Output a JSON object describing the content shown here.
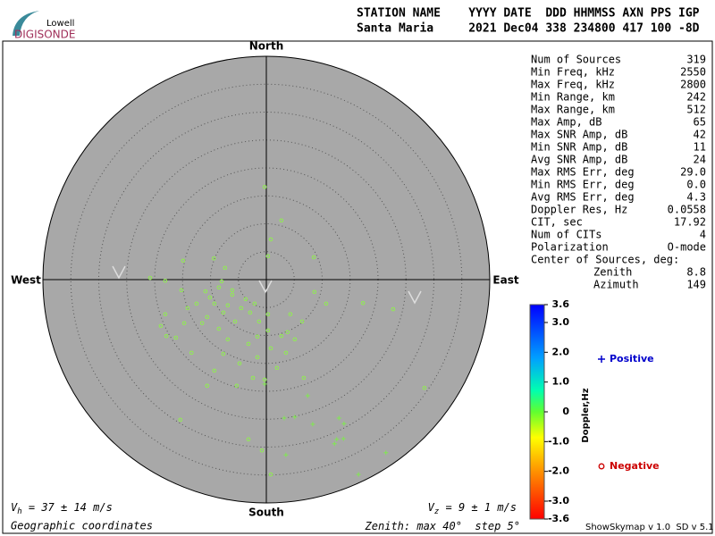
{
  "header": {
    "logo_top": "Lowell",
    "logo_bottom": "DIGISONDE",
    "columns": "STATION NAME    YYYY DATE  DDD HHMMSS AXN PPS IGP",
    "row": "Santa Maria     2021 Dec04 338 234800 417 100 -8D"
  },
  "stats": {
    "rows": [
      [
        "Num of Sources",
        "319"
      ],
      [
        "Min Freq, kHz",
        "2550"
      ],
      [
        "Max Freq, kHz",
        "2800"
      ],
      [
        "Min Range, km",
        "242"
      ],
      [
        "Max Range, km",
        "512"
      ],
      [
        "Max Amp, dB",
        "65"
      ],
      [
        "Max SNR Amp, dB",
        "42"
      ],
      [
        "Min SNR Amp, dB",
        "11"
      ],
      [
        "Avg SNR Amp, dB",
        "24"
      ],
      [
        "Max RMS Err, deg",
        "29.0"
      ],
      [
        "Min RMS Err, deg",
        "0.0"
      ],
      [
        "Avg RMS Err, deg",
        "4.3"
      ],
      [
        "Doppler Res, Hz",
        "0.0558"
      ],
      [
        "CIT, sec",
        "17.92"
      ],
      [
        "Num of CITs",
        "4"
      ],
      [
        "Polarization",
        "O-mode"
      ]
    ],
    "center_title": "Center of Sources, deg:",
    "center_rows": [
      [
        "Zenith",
        "8.8"
      ],
      [
        "Azimuth",
        "149"
      ]
    ]
  },
  "chart_data": {
    "type": "skymap",
    "directions": {
      "north": "North",
      "south": "South",
      "east": "East",
      "west": "West"
    },
    "zenith_label": "Zenith: max",
    "zenith_max": {
      "value": 40,
      "label": "40°"
    },
    "step_label": "step",
    "zenith_step": {
      "value": 5,
      "label": "5°"
    },
    "series": [
      {
        "name": "Positive",
        "marker": "plus",
        "color": "#80e850",
        "legend_color": "#0000cc",
        "east": [
          7.4,
          3.2,
          5.1,
          8.3,
          13.0,
          13.9,
          12.2,
          13.8,
          12.6,
          21.4,
          3.5,
          16.5,
          -0.3
        ],
        "north": [
          -20.8,
          -24.8,
          -24.6,
          -25.9,
          -24.8,
          -25.8,
          -29.4,
          -28.5,
          -28.6,
          -31.0,
          -31.4,
          -34.9,
          -18.7
        ]
      },
      {
        "name": "Negative",
        "marker": "circle",
        "color": "#90ee50",
        "legend_color": "#cc0000",
        "east": [
          -0.3,
          2.7,
          0.8,
          8.5,
          0.3,
          -9.4,
          -14.9,
          -7.4,
          -20.8,
          -18.1,
          -15.2,
          -10.9,
          -8.5,
          -6.1,
          -3.7,
          -9.3,
          -7.7,
          -10.6,
          -5.6,
          -8.5,
          -2.9,
          -1.3,
          0.3,
          4.3,
          8.6,
          17.3,
          22.7,
          -18.1,
          -18.9,
          -16.2,
          -13.4,
          -9.3,
          -10.6,
          -4.8,
          -2.4,
          -0.3,
          0.8,
          2.7,
          5.1,
          3.5,
          6.4,
          3.8,
          28.3,
          10.7,
          -3.2,
          -6.9,
          -1.6,
          -15.4,
          -3.2,
          -0.8,
          0.8,
          -5.3,
          -12.5,
          -10.1,
          -6.9,
          -4.5,
          -2.1,
          -14.1,
          -11.5,
          0.3,
          6.7,
          -1.6,
          -7.7,
          1.9,
          -6.1,
          -8.0,
          -14.7,
          -17.9
        ],
        "north": [
          16.6,
          10.6,
          7.2,
          4.0,
          4.2,
          3.8,
          3.4,
          2.1,
          0.3,
          -0.2,
          -1.9,
          -2.1,
          -1.4,
          -2.7,
          -3.5,
          -4.3,
          -5.9,
          -6.7,
          -7.5,
          -8.8,
          -5.9,
          -7.5,
          -9.1,
          -6.2,
          -2.2,
          -4.2,
          -5.3,
          -6.2,
          -8.3,
          -10.4,
          -13.1,
          -16.3,
          -19.0,
          -15.0,
          -17.6,
          -17.9,
          -12.3,
          -10.1,
          -10.7,
          -13.1,
          -7.5,
          -9.4,
          -19.4,
          -4.3,
          -11.5,
          -10.7,
          -13.9,
          -25.1,
          -28.6,
          -30.6,
          -34.9,
          -19.0,
          -4.3,
          -3.2,
          -4.6,
          -5.1,
          -4.3,
          -5.1,
          -7.8,
          -6.2,
          -17.6,
          -10.2,
          -13.3,
          -15.8,
          -1.9,
          -0.3,
          -7.8,
          -10.1
        ]
      }
    ],
    "colorbar": {
      "label": "Doppler,Hz",
      "lim": [
        -3.6,
        3.6
      ],
      "ticks": [
        3.6,
        {
          "value": 3,
          "label": "3.0"
        },
        {
          "value": 2,
          "label": "2.0"
        },
        {
          "value": 1,
          "label": "1.0"
        },
        0,
        {
          "value": -1,
          "label": "-1.0"
        },
        {
          "value": -2,
          "label": "-2.0"
        },
        {
          "value": -3,
          "label": "-3.0"
        },
        -3.6
      ]
    }
  },
  "footer": {
    "vh_symbol": "V",
    "vh_sub": "h",
    "vh_text": " = 37 ± 14 m/s",
    "vz_symbol": "V",
    "vz_sub": "z",
    "vz_text": " = 9 ± 1 m/s",
    "coords": "Geographic coordinates",
    "version": "ShowSkymap v 1.0  SD v 5.1"
  }
}
